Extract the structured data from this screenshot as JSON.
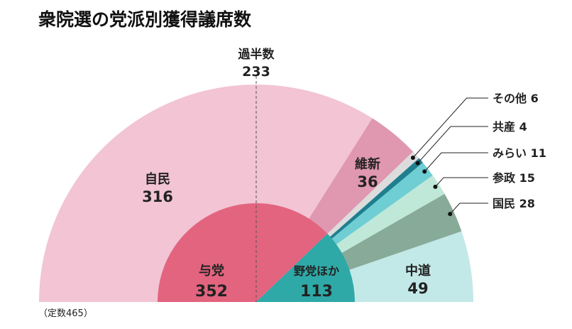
{
  "chart_data": {
    "type": "pie",
    "subtype": "semicircle-donut",
    "title": "衆院選の党派別獲得議席数",
    "note": "（定数465）",
    "total": 465,
    "majority": {
      "label": "過半数",
      "value": 233,
      "color": "#e0952a"
    },
    "outer": [
      {
        "name": "自民",
        "value": 316,
        "color": "#f2c4d4",
        "label": "inside"
      },
      {
        "name": "維新",
        "value": 36,
        "color": "#e097b0",
        "label": "inside"
      },
      {
        "name": "その他",
        "value": 6,
        "color": "#dcdcdc",
        "label": "callout"
      },
      {
        "name": "共産",
        "value": 4,
        "color": "#1f7f8f",
        "label": "callout"
      },
      {
        "name": "みらい",
        "value": 11,
        "color": "#6fcdd4",
        "label": "callout"
      },
      {
        "name": "参政",
        "value": 15,
        "color": "#bfe8d8",
        "label": "callout"
      },
      {
        "name": "国民",
        "value": 28,
        "color": "#88aa98",
        "label": "callout"
      },
      {
        "name": "中道",
        "value": 49,
        "color": "#c2e9e7",
        "label": "inside"
      }
    ],
    "inner": [
      {
        "name": "与党",
        "value": 352,
        "color": "#e3647f"
      },
      {
        "name": "野党ほか",
        "value": 113,
        "color": "#2ea9a7"
      }
    ]
  }
}
